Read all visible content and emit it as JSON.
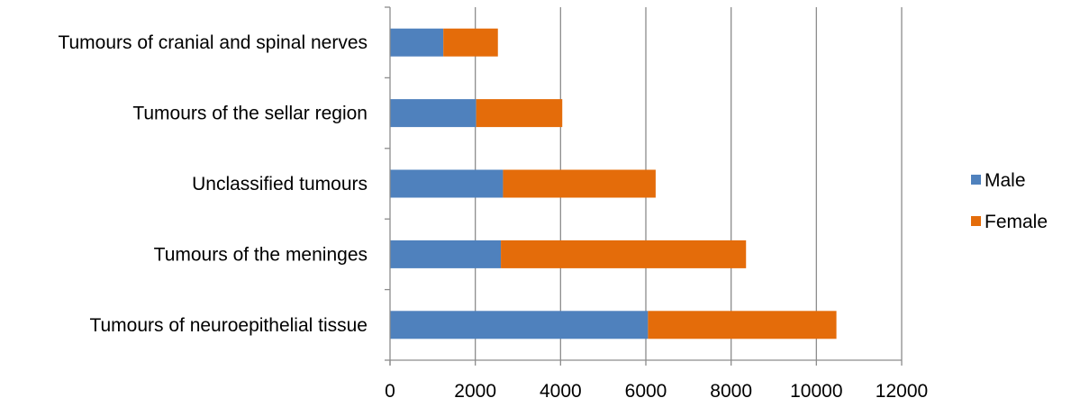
{
  "chart_data": {
    "type": "bar",
    "orientation": "horizontal",
    "stacked": true,
    "categories": [
      "Tumours of cranial and spinal nerves",
      "Tumours of the sellar region",
      "Unclassified tumours",
      "Tumours of the meninges",
      "Tumours of neuroepithelial tissue"
    ],
    "series": [
      {
        "name": "Male",
        "color": "#4F81BD",
        "values": [
          1250,
          2020,
          2650,
          2600,
          6050
        ]
      },
      {
        "name": "Female",
        "color": "#E46C0A",
        "values": [
          1280,
          2020,
          3580,
          5750,
          4420
        ]
      }
    ],
    "xlim": [
      0,
      12000
    ],
    "x_ticks": [
      "0",
      "2000",
      "4000",
      "6000",
      "8000",
      "10000",
      "12000"
    ],
    "grid": "vertical",
    "legend_position": "right",
    "title": "",
    "xlabel": "",
    "ylabel": ""
  }
}
